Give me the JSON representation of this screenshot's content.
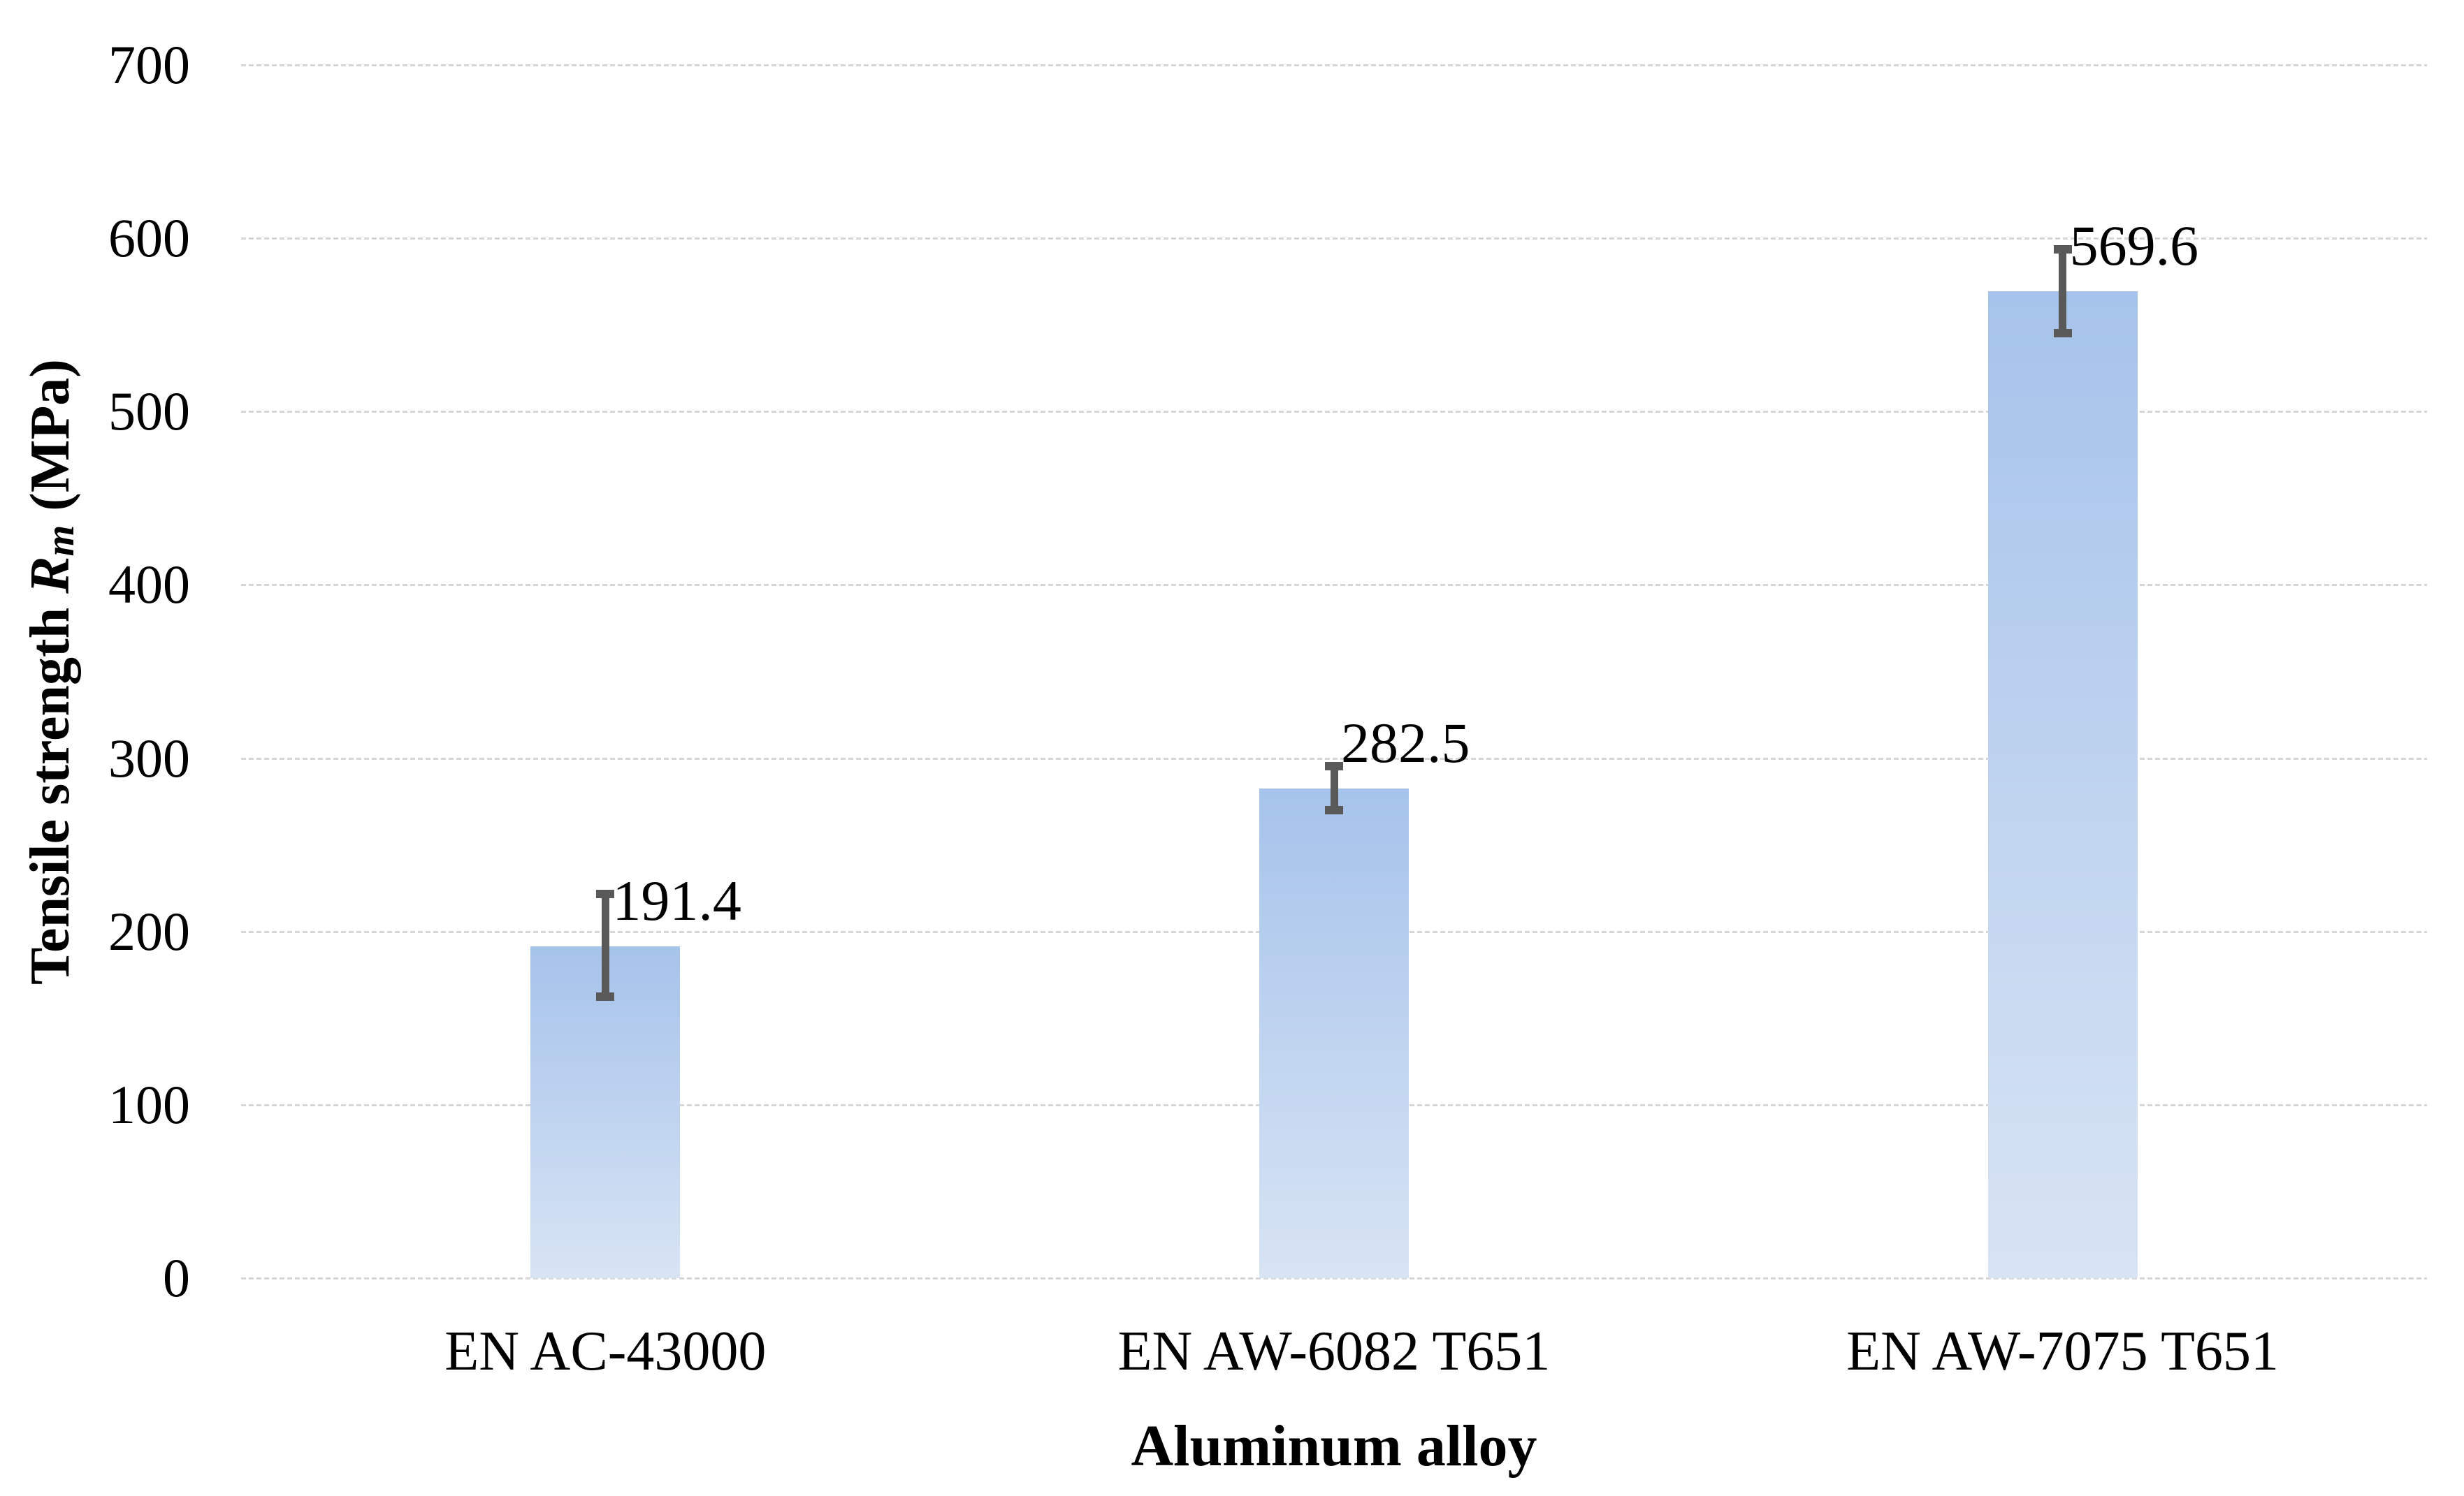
{
  "chart_data": {
    "type": "bar",
    "title": "",
    "categories": [
      "EN AC-43000",
      "EN AW-6082 T651",
      "EN AW-7075 T651"
    ],
    "values": [
      191.4,
      282.5,
      569.6
    ],
    "value_labels": [
      "191.4",
      "282.5",
      "569.6"
    ],
    "error_bars": {
      "plus": [
        30.2,
        12.9,
        24.0
      ],
      "minus": [
        29.0,
        12.5,
        24.4
      ]
    },
    "xlabel": "Aluminum alloy",
    "ylabel": "Tensile strength Rm (MPa)",
    "ylabel_parts": {
      "prefix": "Tensile strength ",
      "symbol": "R",
      "symbol_sub": "m",
      "unit": " (MPa)"
    },
    "ylim": [
      0,
      700
    ],
    "yticks": [
      0,
      100,
      200,
      300,
      400,
      500,
      600,
      700
    ],
    "ytick_labels": [
      "0",
      "100",
      "200",
      "300",
      "400",
      "500",
      "600",
      "700"
    ],
    "grid": "horizontal dashed",
    "legend": "none",
    "colors": {
      "bar_gradient_top": "#a6c3eb",
      "bar_gradient_bottom": "#d8e4f4",
      "error_bar": "#595959",
      "gridline": "#d6d6d6",
      "text": "#000000",
      "background": "#ffffff"
    }
  }
}
